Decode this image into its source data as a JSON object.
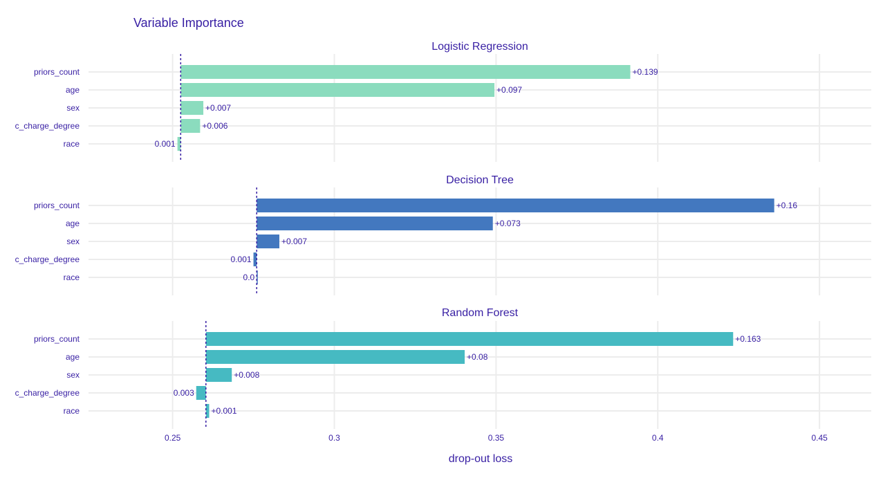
{
  "chart_data": {
    "type": "bar",
    "orientation": "horizontal",
    "title": "Variable Importance",
    "xlabel": "drop-out loss",
    "xlim": [
      0.224,
      0.466
    ],
    "xticks": [
      0.25,
      0.3,
      0.35,
      0.4,
      0.45
    ],
    "xtick_labels": [
      "0.25",
      "0.3",
      "0.35",
      "0.4",
      "0.45"
    ],
    "grid": true,
    "categories": [
      "priors_count",
      "age",
      "sex",
      "c_charge_degree",
      "race"
    ],
    "panels": [
      {
        "name": "Logistic Regression",
        "color": "#8bdcbe",
        "baseline": 0.2525,
        "values": [
          0.139,
          0.097,
          0.007,
          0.006,
          -0.001
        ],
        "labels": [
          "+0.139",
          "+0.097",
          "+0.007",
          "+0.006",
          "0.001"
        ]
      },
      {
        "name": "Decision Tree",
        "color": "#4378bf",
        "baseline": 0.276,
        "values": [
          0.16,
          0.073,
          0.007,
          -0.001,
          0.0
        ],
        "labels": [
          "+0.16",
          "+0.073",
          "+0.007",
          "0.001",
          "0.0"
        ]
      },
      {
        "name": "Random Forest",
        "color": "#46bac2",
        "baseline": 0.2603,
        "values": [
          0.163,
          0.08,
          0.008,
          -0.003,
          0.001
        ],
        "labels": [
          "+0.163",
          "+0.08",
          "+0.008",
          "0.003",
          "+0.001"
        ]
      }
    ]
  }
}
